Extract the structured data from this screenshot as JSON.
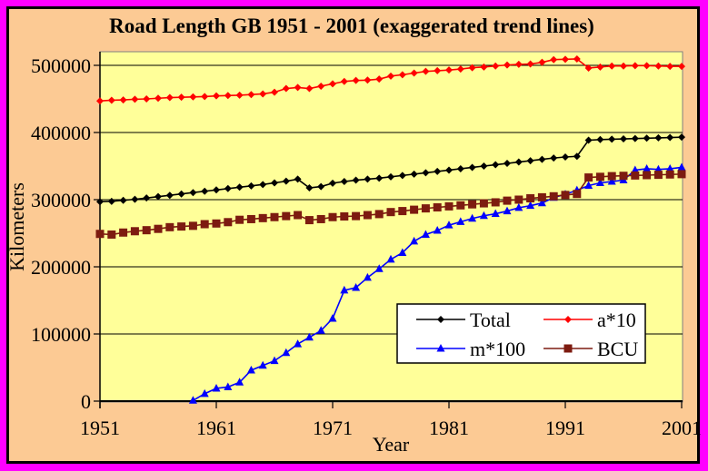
{
  "colors": {
    "frame": "#FF00FF",
    "chart_background": "#FCCA94",
    "plot_background": "#FFFF99",
    "plot_border": "#808080",
    "gridline": "#000000",
    "legend_background": "#FFFFFF",
    "legend_border": "#000000"
  },
  "chart_data": {
    "type": "line",
    "title": "Road Length GB 1951 - 2001 (exaggerated trend lines)",
    "xlabel": "Year",
    "ylabel": "Kilometers",
    "x": [
      1951,
      1952,
      1953,
      1954,
      1955,
      1956,
      1957,
      1958,
      1959,
      1960,
      1961,
      1962,
      1963,
      1964,
      1965,
      1966,
      1967,
      1968,
      1969,
      1970,
      1971,
      1972,
      1973,
      1974,
      1975,
      1976,
      1977,
      1978,
      1979,
      1980,
      1981,
      1982,
      1983,
      1984,
      1985,
      1986,
      1987,
      1988,
      1989,
      1990,
      1991,
      1992,
      1993,
      1994,
      1995,
      1996,
      1997,
      1998,
      1999,
      2000,
      2001
    ],
    "xticks": [
      1951,
      1961,
      1971,
      1981,
      1991,
      2001
    ],
    "yticks": [
      0,
      100000,
      200000,
      300000,
      400000,
      500000
    ],
    "ylim": [
      0,
      520000
    ],
    "xlim": [
      1951,
      2001
    ],
    "grid": "horizontal",
    "legend_position": "inside-lower-right",
    "series": [
      {
        "name": "Total",
        "color": "#000000",
        "marker": "diamond",
        "values": [
          297000,
          297500,
          299000,
          300500,
          302500,
          304500,
          306500,
          308500,
          310500,
          312500,
          314500,
          316500,
          318500,
          320500,
          322500,
          325000,
          327500,
          330500,
          317500,
          319500,
          324500,
          327000,
          329000,
          330500,
          332000,
          334000,
          336000,
          338000,
          340000,
          342000,
          344000,
          346000,
          348000,
          350000,
          352000,
          354000,
          356000,
          358000,
          360000,
          362000,
          363500,
          364500,
          388500,
          389500,
          390000,
          390500,
          391000,
          391500,
          392000,
          392500,
          393000
        ]
      },
      {
        "name": "a*10",
        "color": "#FF0000",
        "marker": "diamond",
        "values": [
          447000,
          448000,
          448500,
          449500,
          450000,
          451000,
          452000,
          452500,
          453000,
          453500,
          454500,
          455000,
          455500,
          456500,
          457500,
          460000,
          465500,
          467000,
          465500,
          469000,
          472500,
          476000,
          477500,
          478000,
          479500,
          484000,
          486000,
          488500,
          491000,
          492000,
          493000,
          494500,
          496500,
          497500,
          499000,
          500500,
          501500,
          502000,
          504500,
          508500,
          509000,
          509500,
          496000,
          497500,
          499000,
          499000,
          499500,
          499500,
          499000,
          498500,
          498500
        ]
      },
      {
        "name": "m*100",
        "color": "#0000FF",
        "marker": "triangle",
        "values": [
          null,
          null,
          null,
          null,
          null,
          null,
          null,
          null,
          1000,
          11000,
          19000,
          21000,
          28000,
          46000,
          53000,
          60000,
          72000,
          85000,
          95000,
          105000,
          123000,
          165000,
          169000,
          184000,
          197000,
          211000,
          221000,
          238000,
          248000,
          254000,
          262000,
          267000,
          272000,
          276000,
          279000,
          283000,
          288000,
          291000,
          295000,
          303000,
          308000,
          314000,
          321000,
          325000,
          327000,
          329000,
          344000,
          346000,
          345000,
          346000,
          348000
        ]
      },
      {
        "name": "BCU",
        "color": "#7D1B10",
        "marker": "square",
        "values": [
          249000,
          248000,
          251000,
          253000,
          254500,
          256500,
          259000,
          260000,
          261000,
          263500,
          264500,
          266500,
          270000,
          271000,
          272500,
          274000,
          275500,
          277000,
          269500,
          271000,
          274000,
          275000,
          275500,
          277000,
          278500,
          281500,
          283000,
          285000,
          287000,
          288500,
          290000,
          291500,
          293000,
          294500,
          296000,
          298500,
          300000,
          302000,
          303500,
          305000,
          307000,
          308500,
          333000,
          334000,
          335000,
          335500,
          336000,
          336500,
          337000,
          337500,
          338000
        ]
      }
    ]
  }
}
